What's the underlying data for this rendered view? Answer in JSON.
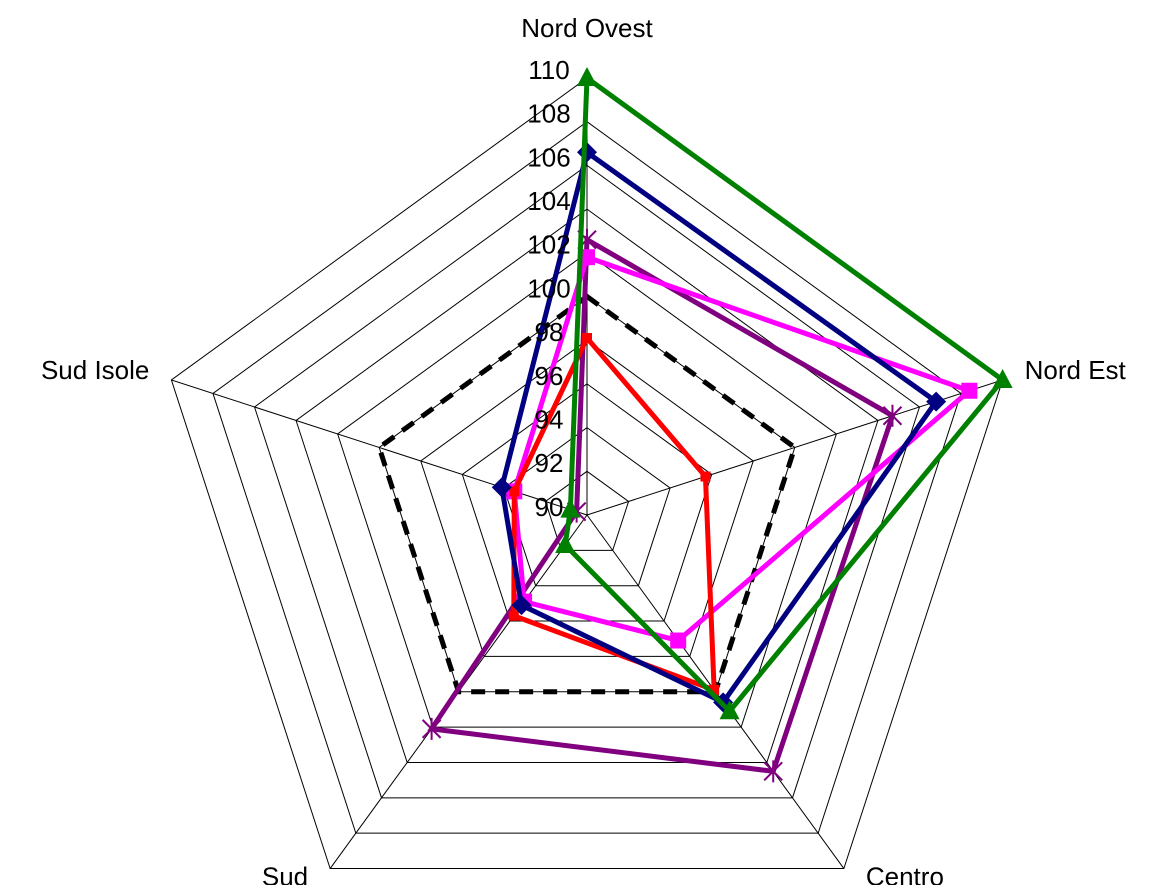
{
  "chart_data": {
    "type": "radar",
    "categories": [
      "Nord Ovest",
      "Nord Est",
      "Centro",
      "Sud",
      "Sud Isole"
    ],
    "ylim": [
      90,
      110
    ],
    "yticks": [
      90,
      92,
      94,
      96,
      98,
      100,
      102,
      104,
      106,
      108,
      110
    ],
    "grid": true,
    "series": [
      {
        "color": "#000000",
        "dashed": true,
        "marker": "none",
        "values": [
          100,
          100,
          100,
          100,
          100
        ]
      },
      {
        "color": "#800080",
        "dashed": false,
        "marker": "star",
        "values": [
          102.6,
          104.7,
          104.5,
          102.1,
          90.5
        ]
      },
      {
        "color": "#ff00ff",
        "dashed": false,
        "marker": "square",
        "values": [
          101.8,
          108.4,
          97.1,
          94.9,
          93.5
        ]
      },
      {
        "color": "#ff0000",
        "dashed": false,
        "marker": "square-small",
        "values": [
          98.1,
          95.7,
          99.9,
          95.7,
          93.5
        ]
      },
      {
        "color": "#000080",
        "dashed": false,
        "marker": "diamond",
        "values": [
          106.6,
          106.8,
          100.6,
          95.1,
          94.1
        ]
      },
      {
        "color": "#008000",
        "dashed": false,
        "marker": "triangle",
        "values": [
          110,
          110,
          101.1,
          91.7,
          90.8
        ]
      }
    ]
  }
}
